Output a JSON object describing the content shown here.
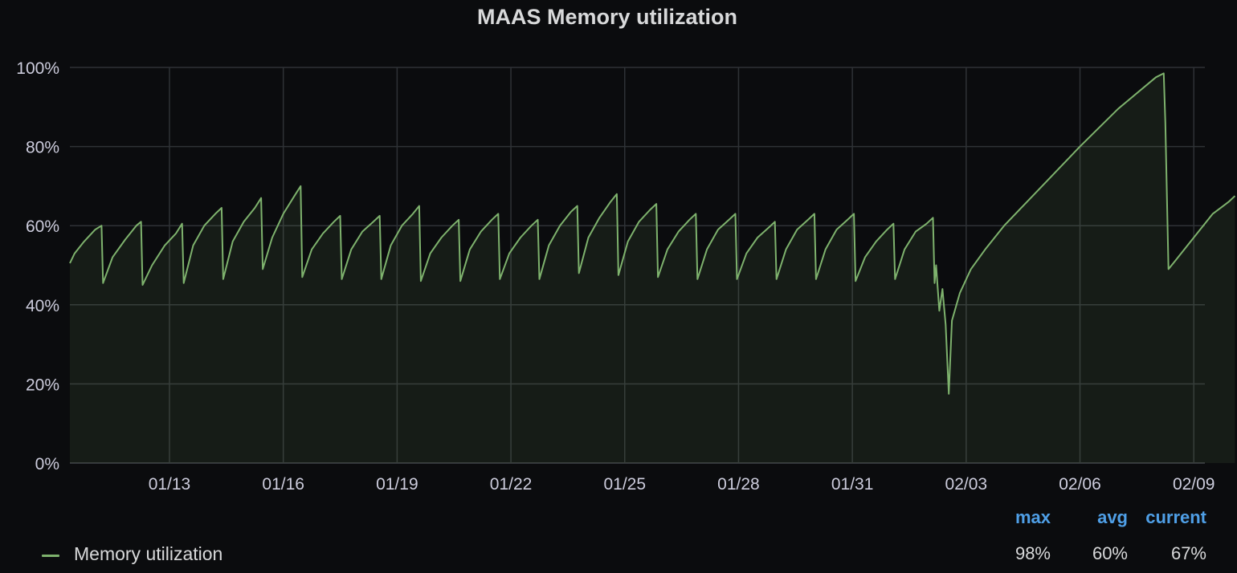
{
  "panel": {
    "title": "MAAS Memory utilization"
  },
  "colors": {
    "background": "#0b0c0e",
    "series": "#7eb26d",
    "grid": "#2f3236",
    "legend_header": "#4f9fe6"
  },
  "legend": {
    "headers": {
      "max": "max",
      "avg": "avg",
      "current": "current"
    },
    "series": [
      {
        "name": "Memory utilization",
        "max": "98%",
        "avg": "60%",
        "current": "67%"
      }
    ]
  },
  "chart_data": {
    "type": "area",
    "title": "MAAS Memory utilization",
    "xlabel": "",
    "ylabel": "",
    "x_ticks": [
      "01/13",
      "01/16",
      "01/19",
      "01/22",
      "01/25",
      "01/28",
      "01/31",
      "02/03",
      "02/06",
      "02/09"
    ],
    "y_ticks": [
      "0%",
      "20%",
      "40%",
      "60%",
      "80%",
      "100%"
    ],
    "ylim": [
      0,
      100
    ],
    "xlim": [
      "2021-01-10 09:00",
      "2021-02-09 07:00"
    ],
    "grid": true,
    "legend_position": "bottom-left",
    "series": [
      {
        "name": "Memory utilization",
        "points": [
          [
            "2021-01-10 09:00",
            50.5
          ],
          [
            "2021-01-10 12:00",
            53
          ],
          [
            "2021-01-10 18:00",
            56
          ],
          [
            "2021-01-11 01:00",
            59
          ],
          [
            "2021-01-11 05:00",
            60
          ],
          [
            "2021-01-11 06:00",
            45.5
          ],
          [
            "2021-01-11 12:00",
            52
          ],
          [
            "2021-01-11 20:00",
            56.5
          ],
          [
            "2021-01-12 03:00",
            60
          ],
          [
            "2021-01-12 06:00",
            61
          ],
          [
            "2021-01-12 07:00",
            45
          ],
          [
            "2021-01-12 13:00",
            50
          ],
          [
            "2021-01-12 21:00",
            55
          ],
          [
            "2021-01-13 04:00",
            58
          ],
          [
            "2021-01-13 08:00",
            60.5
          ],
          [
            "2021-01-13 09:00",
            45.5
          ],
          [
            "2021-01-13 15:00",
            55
          ],
          [
            "2021-01-13 22:00",
            60
          ],
          [
            "2021-01-14 05:00",
            63
          ],
          [
            "2021-01-14 09:00",
            64.5
          ],
          [
            "2021-01-14 10:00",
            46.5
          ],
          [
            "2021-01-14 16:00",
            56
          ],
          [
            "2021-01-14 23:00",
            61
          ],
          [
            "2021-01-15 06:00",
            64.5
          ],
          [
            "2021-01-15 10:00",
            67
          ],
          [
            "2021-01-15 11:00",
            49
          ],
          [
            "2021-01-15 17:00",
            57
          ],
          [
            "2021-01-16 00:00",
            63
          ],
          [
            "2021-01-16 07:00",
            67.5
          ],
          [
            "2021-01-16 11:00",
            70
          ],
          [
            "2021-01-16 12:00",
            47
          ],
          [
            "2021-01-16 18:00",
            54
          ],
          [
            "2021-01-17 01:00",
            58
          ],
          [
            "2021-01-17 08:00",
            61
          ],
          [
            "2021-01-17 12:00",
            62.5
          ],
          [
            "2021-01-17 13:00",
            46.5
          ],
          [
            "2021-01-17 19:00",
            54
          ],
          [
            "2021-01-18 02:00",
            58.5
          ],
          [
            "2021-01-18 09:00",
            61
          ],
          [
            "2021-01-18 13:00",
            62.5
          ],
          [
            "2021-01-18 14:00",
            46.5
          ],
          [
            "2021-01-18 20:00",
            55
          ],
          [
            "2021-01-19 03:00",
            60
          ],
          [
            "2021-01-19 10:00",
            63
          ],
          [
            "2021-01-19 14:00",
            65
          ],
          [
            "2021-01-19 15:00",
            46
          ],
          [
            "2021-01-19 21:00",
            53
          ],
          [
            "2021-01-20 04:00",
            57
          ],
          [
            "2021-01-20 11:00",
            60
          ],
          [
            "2021-01-20 15:00",
            61.5
          ],
          [
            "2021-01-20 16:00",
            46
          ],
          [
            "2021-01-20 22:00",
            54
          ],
          [
            "2021-01-21 05:00",
            58.5
          ],
          [
            "2021-01-21 12:00",
            61.5
          ],
          [
            "2021-01-21 16:00",
            63
          ],
          [
            "2021-01-21 17:00",
            46.5
          ],
          [
            "2021-01-21 23:00",
            53
          ],
          [
            "2021-01-22 06:00",
            57
          ],
          [
            "2021-01-22 13:00",
            60
          ],
          [
            "2021-01-22 17:00",
            61.5
          ],
          [
            "2021-01-22 18:00",
            46.5
          ],
          [
            "2021-01-23 00:00",
            55
          ],
          [
            "2021-01-23 07:00",
            60
          ],
          [
            "2021-01-23 14:00",
            63.5
          ],
          [
            "2021-01-23 18:00",
            65
          ],
          [
            "2021-01-23 19:00",
            48
          ],
          [
            "2021-01-24 01:00",
            57
          ],
          [
            "2021-01-24 08:00",
            62
          ],
          [
            "2021-01-24 15:00",
            66
          ],
          [
            "2021-01-24 19:00",
            68
          ],
          [
            "2021-01-24 20:00",
            47.5
          ],
          [
            "2021-01-25 02:00",
            56
          ],
          [
            "2021-01-25 09:00",
            61
          ],
          [
            "2021-01-25 16:00",
            64
          ],
          [
            "2021-01-25 20:00",
            65.5
          ],
          [
            "2021-01-25 21:00",
            47
          ],
          [
            "2021-01-26 03:00",
            54
          ],
          [
            "2021-01-26 10:00",
            58.5
          ],
          [
            "2021-01-26 17:00",
            61.5
          ],
          [
            "2021-01-26 21:00",
            63
          ],
          [
            "2021-01-26 22:00",
            46.5
          ],
          [
            "2021-01-27 04:00",
            54
          ],
          [
            "2021-01-27 11:00",
            59
          ],
          [
            "2021-01-27 18:00",
            61.5
          ],
          [
            "2021-01-27 22:00",
            63
          ],
          [
            "2021-01-27 23:00",
            46.5
          ],
          [
            "2021-01-28 05:00",
            53
          ],
          [
            "2021-01-28 12:00",
            57
          ],
          [
            "2021-01-28 19:00",
            59.5
          ],
          [
            "2021-01-28 23:00",
            61
          ],
          [
            "2021-01-29 00:00",
            46.5
          ],
          [
            "2021-01-29 06:00",
            54
          ],
          [
            "2021-01-29 13:00",
            59
          ],
          [
            "2021-01-29 20:00",
            61.5
          ],
          [
            "2021-01-30 00:00",
            63
          ],
          [
            "2021-01-30 01:00",
            46.5
          ],
          [
            "2021-01-30 07:00",
            54
          ],
          [
            "2021-01-30 14:00",
            59
          ],
          [
            "2021-01-30 21:00",
            61.5
          ],
          [
            "2021-01-31 01:00",
            63
          ],
          [
            "2021-01-31 02:00",
            46
          ],
          [
            "2021-01-31 08:00",
            52
          ],
          [
            "2021-01-31 15:00",
            56
          ],
          [
            "2021-01-31 22:00",
            59
          ],
          [
            "2021-02-01 02:00",
            60.5
          ],
          [
            "2021-02-01 03:00",
            46.5
          ],
          [
            "2021-02-01 09:00",
            54
          ],
          [
            "2021-02-01 16:00",
            58.5
          ],
          [
            "2021-02-01 23:00",
            60.5
          ],
          [
            "2021-02-02 03:00",
            62
          ],
          [
            "2021-02-02 04:00",
            45.5
          ],
          [
            "2021-02-02 05:00",
            50
          ],
          [
            "2021-02-02 07:00",
            38.5
          ],
          [
            "2021-02-02 09:00",
            44
          ],
          [
            "2021-02-02 11:00",
            35
          ],
          [
            "2021-02-02 13:00",
            17.5
          ],
          [
            "2021-02-02 15:00",
            36
          ],
          [
            "2021-02-02 20:00",
            43
          ],
          [
            "2021-02-03 03:00",
            49
          ],
          [
            "2021-02-03 12:00",
            54
          ],
          [
            "2021-02-04 00:00",
            60
          ],
          [
            "2021-02-05 00:00",
            70
          ],
          [
            "2021-02-06 00:00",
            80
          ],
          [
            "2021-02-07 00:00",
            89.5
          ],
          [
            "2021-02-08 00:00",
            97.5
          ],
          [
            "2021-02-08 05:00",
            98.5
          ],
          [
            "2021-02-08 06:00",
            86
          ],
          [
            "2021-02-08 08:00",
            49
          ],
          [
            "2021-02-08 12:00",
            51
          ],
          [
            "2021-02-09 00:00",
            57
          ],
          [
            "2021-02-09 12:00",
            63
          ],
          [
            "2021-02-09 22:00",
            66
          ],
          [
            "2021-02-10 02:00",
            67.5
          ]
        ]
      }
    ]
  }
}
